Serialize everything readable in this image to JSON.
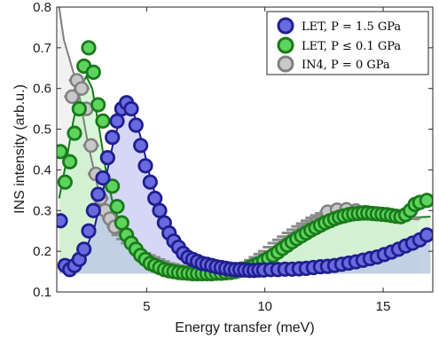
{
  "chart_data": {
    "type": "scatter",
    "xlabel": "Energy transfer (meV)",
    "ylabel": "INS intensity (arb.u.)",
    "xlim": [
      1.2,
      17.1
    ],
    "ylim": [
      0.1,
      0.8
    ],
    "xticks": [
      5,
      10,
      15
    ],
    "xtick_labels": [
      "5",
      "10",
      "15"
    ],
    "yticks": [
      0.1,
      0.2,
      0.3,
      0.4,
      0.5,
      0.6,
      0.7,
      0.8
    ],
    "ytick_labels": [
      "0.1",
      "0.2",
      "0.3",
      "0.4",
      "0.5",
      "0.6",
      "0.7",
      "0.8"
    ],
    "grid": false,
    "legend_position": "top-right",
    "legend": [
      {
        "label": "LET, P = 1.5 GPa",
        "color": "#1f1f8f",
        "fill": "#6666dd"
      },
      {
        "label": "LET, P ≤ 0.1 GPa",
        "color": "#1a7a1a",
        "fill": "#66dd66"
      },
      {
        "label": "IN4, P = 0 GPa",
        "color": "#808080",
        "fill": "#c8c8c8"
      }
    ],
    "series": [
      {
        "name": "LET, P = 1.5 GPa",
        "color": "#1f1f8f",
        "fill": "#6a6ae0",
        "area_fill": "#b4b4f0",
        "x": [
          1.35,
          1.55,
          1.75,
          1.95,
          2.15,
          2.35,
          2.55,
          2.75,
          2.95,
          3.15,
          3.35,
          3.55,
          3.75,
          3.95,
          4.15,
          4.35,
          4.55,
          4.75,
          4.95,
          5.15,
          5.35,
          5.55,
          5.75,
          5.95,
          6.15,
          6.35,
          6.55,
          6.75,
          6.95,
          7.15,
          7.35,
          7.55,
          7.75,
          7.95,
          8.15,
          8.35,
          8.55,
          8.75,
          8.95,
          9.15,
          9.35,
          9.55,
          9.75,
          9.95,
          10.25,
          10.55,
          10.85,
          11.15,
          11.45,
          11.75,
          12.05,
          12.35,
          12.65,
          12.95,
          13.25,
          13.55,
          13.85,
          14.15,
          14.45,
          14.75,
          15.05,
          15.35,
          15.65,
          15.95,
          16.25,
          16.55,
          16.85
        ],
        "y": [
          0.275,
          0.165,
          0.155,
          0.165,
          0.18,
          0.205,
          0.25,
          0.3,
          0.34,
          0.38,
          0.43,
          0.48,
          0.52,
          0.55,
          0.565,
          0.55,
          0.51,
          0.46,
          0.41,
          0.37,
          0.33,
          0.3,
          0.27,
          0.245,
          0.225,
          0.21,
          0.195,
          0.185,
          0.18,
          0.175,
          0.17,
          0.168,
          0.165,
          0.162,
          0.16,
          0.158,
          0.156,
          0.155,
          0.155,
          0.154,
          0.153,
          0.153,
          0.154,
          0.154,
          0.155,
          0.155,
          0.156,
          0.156,
          0.157,
          0.158,
          0.16,
          0.162,
          0.163,
          0.165,
          0.168,
          0.171,
          0.174,
          0.178,
          0.182,
          0.186,
          0.192,
          0.198,
          0.205,
          0.213,
          0.22,
          0.228,
          0.24
        ],
        "fit_x": [
          1.3,
          1.6,
          2.0,
          2.4,
          2.8,
          3.2,
          3.6,
          4.0,
          4.2,
          4.4,
          4.8,
          5.2,
          5.6,
          6.0,
          6.5,
          7.0,
          8.0,
          9.0,
          10.0,
          11.0,
          12.0,
          13.0,
          14.0,
          15.0,
          16.0,
          17.0
        ],
        "fit_y": [
          0.16,
          0.16,
          0.17,
          0.2,
          0.26,
          0.36,
          0.47,
          0.55,
          0.565,
          0.55,
          0.47,
          0.37,
          0.3,
          0.25,
          0.21,
          0.19,
          0.17,
          0.16,
          0.155,
          0.155,
          0.158,
          0.163,
          0.175,
          0.192,
          0.215,
          0.245
        ]
      },
      {
        "name": "LET, P ≤ 0.1 GPa",
        "color": "#1a7a1a",
        "fill": "#5ed45e",
        "area_fill": "#b8f0b8",
        "x": [
          1.35,
          1.55,
          1.75,
          1.95,
          2.15,
          2.35,
          2.55,
          2.75,
          2.95,
          3.15,
          3.35,
          3.55,
          3.75,
          3.95,
          4.15,
          4.35,
          4.55,
          4.75,
          4.95,
          5.15,
          5.35,
          5.55,
          5.75,
          5.95,
          6.15,
          6.35,
          6.55,
          6.75,
          6.95,
          7.15,
          7.35,
          7.55,
          7.75,
          7.95,
          8.15,
          8.35,
          8.55,
          8.75,
          8.95,
          9.15,
          9.35,
          9.55,
          9.75,
          9.95,
          10.15,
          10.35,
          10.55,
          10.75,
          10.95,
          11.15,
          11.35,
          11.55,
          11.75,
          11.95,
          12.15,
          12.35,
          12.55,
          12.75,
          12.95,
          13.15,
          13.35,
          13.55,
          13.75,
          13.95,
          14.15,
          14.35,
          14.55,
          14.75,
          14.95,
          15.15,
          15.35,
          15.55,
          15.75,
          15.95,
          16.15,
          16.35,
          16.55,
          16.85
        ],
        "y": [
          0.445,
          0.37,
          0.42,
          0.49,
          0.55,
          0.655,
          0.7,
          0.64,
          0.56,
          0.52,
          0.43,
          0.36,
          0.31,
          0.27,
          0.24,
          0.22,
          0.205,
          0.19,
          0.18,
          0.17,
          0.165,
          0.16,
          0.155,
          0.152,
          0.15,
          0.148,
          0.147,
          0.146,
          0.145,
          0.145,
          0.145,
          0.145,
          0.145,
          0.146,
          0.146,
          0.147,
          0.148,
          0.15,
          0.153,
          0.156,
          0.16,
          0.165,
          0.17,
          0.176,
          0.183,
          0.19,
          0.198,
          0.207,
          0.215,
          0.223,
          0.231,
          0.238,
          0.245,
          0.252,
          0.258,
          0.264,
          0.27,
          0.275,
          0.28,
          0.284,
          0.287,
          0.29,
          0.292,
          0.293,
          0.294,
          0.294,
          0.293,
          0.292,
          0.291,
          0.29,
          0.288,
          0.286,
          0.285,
          0.29,
          0.3,
          0.315,
          0.32,
          0.325
        ],
        "fit_x": [
          1.3,
          1.6,
          1.9,
          2.2,
          2.45,
          2.7,
          3.0,
          3.3,
          3.6,
          4.0,
          4.5,
          5.0,
          5.5,
          6.0,
          7.0,
          8.0,
          9.0,
          10.0,
          11.0,
          12.0,
          13.0,
          14.0,
          15.0,
          16.0,
          17.0
        ],
        "fit_y": [
          0.33,
          0.42,
          0.52,
          0.6,
          0.63,
          0.6,
          0.5,
          0.39,
          0.31,
          0.25,
          0.21,
          0.19,
          0.175,
          0.165,
          0.155,
          0.15,
          0.155,
          0.18,
          0.22,
          0.25,
          0.27,
          0.278,
          0.28,
          0.282,
          0.285
        ]
      },
      {
        "name": "IN4, P = 0 GPa",
        "color": "#808080",
        "fill": "#c8c8c8",
        "area_fill": "#e6e6e6",
        "x": [
          1.85,
          2.05,
          2.25,
          2.45,
          2.65,
          2.85,
          3.05,
          3.25,
          3.45,
          3.65,
          3.85,
          4.05,
          4.25,
          4.45,
          4.65,
          4.85,
          5.05,
          5.25,
          5.45,
          5.65,
          5.85,
          6.05,
          6.25,
          6.45,
          6.65,
          6.85,
          7.05,
          7.25,
          7.45,
          7.65,
          7.85,
          8.05,
          8.25,
          8.45,
          8.65,
          8.85,
          9.05,
          9.25,
          9.45,
          9.65,
          9.85,
          10.05,
          10.25,
          10.45,
          10.65,
          10.85,
          11.05,
          11.25,
          11.45,
          11.65,
          11.85,
          12.05,
          12.25,
          12.45,
          12.65,
          12.85,
          13.05,
          13.25,
          13.45,
          13.65,
          13.85,
          14.05,
          14.25,
          14.45,
          14.65,
          14.85,
          15.05,
          15.25,
          15.45,
          15.65,
          15.85,
          16.05,
          16.25
        ],
        "y": [
          0.58,
          0.62,
          0.6,
          0.55,
          0.46,
          0.39,
          0.33,
          0.3,
          0.28,
          0.26,
          0.24,
          0.23,
          0.22,
          0.21,
          0.2,
          0.195,
          0.19,
          0.185,
          0.18,
          0.175,
          0.17,
          0.168,
          0.165,
          0.162,
          0.16,
          0.158,
          0.157,
          0.156,
          0.155,
          0.155,
          0.155,
          0.156,
          0.157,
          0.158,
          0.16,
          0.163,
          0.167,
          0.172,
          0.178,
          0.185,
          0.193,
          0.2,
          0.21,
          0.22,
          0.228,
          0.236,
          0.245,
          0.253,
          0.261,
          0.268,
          0.275,
          0.282,
          0.288,
          0.293,
          0.297,
          0.3,
          0.302,
          0.303,
          0.303,
          0.302,
          0.3,
          0.298,
          0.296,
          0.294,
          0.292,
          0.29,
          0.288,
          0.286,
          0.285,
          0.284,
          0.283,
          0.282,
          0.281
        ],
        "fit_x": [
          1.3,
          1.5,
          1.8,
          2.1,
          2.5,
          3.0,
          3.5,
          4.0,
          5.0,
          6.0,
          7.0,
          8.0,
          9.0,
          10.0,
          11.0,
          12.0,
          13.0,
          14.0,
          15.0,
          16.0,
          16.5
        ],
        "fit_y": [
          0.8,
          0.72,
          0.66,
          0.6,
          0.47,
          0.34,
          0.27,
          0.23,
          0.19,
          0.17,
          0.158,
          0.155,
          0.162,
          0.195,
          0.24,
          0.28,
          0.3,
          0.3,
          0.29,
          0.28,
          0.278
        ]
      }
    ]
  }
}
